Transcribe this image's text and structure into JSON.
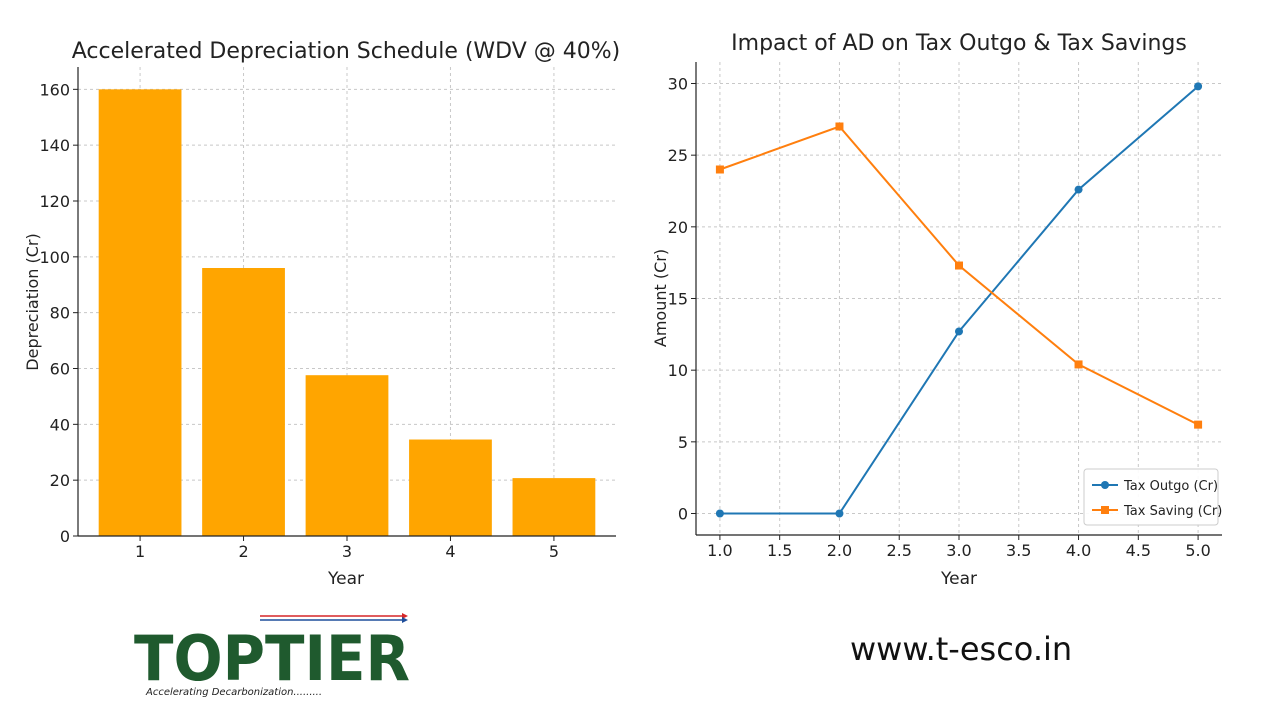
{
  "chart_data": [
    {
      "type": "bar",
      "title": "Accelerated Depreciation Schedule (WDV @ 40%)",
      "xlabel": "Year",
      "ylabel": "Depreciation (Cr)",
      "categories": [
        "1",
        "2",
        "3",
        "4",
        "5"
      ],
      "values": [
        160,
        96,
        57.6,
        34.56,
        20.74
      ],
      "ylim": [
        0,
        168
      ],
      "yticks": [
        0,
        20,
        40,
        60,
        80,
        100,
        120,
        140,
        160
      ],
      "color": "#ffa500",
      "grid": true
    },
    {
      "type": "line",
      "title": "Impact of AD on Tax Outgo & Tax Savings",
      "xlabel": "Year",
      "ylabel": "Amount (Cr)",
      "x": [
        1.0,
        2.0,
        3.0,
        4.0,
        5.0
      ],
      "xticks": [
        "1.0",
        "1.5",
        "2.0",
        "2.5",
        "3.0",
        "3.5",
        "4.0",
        "4.5",
        "5.0"
      ],
      "xlim": [
        0.8,
        5.2
      ],
      "yticks": [
        0,
        5,
        10,
        15,
        20,
        25,
        30
      ],
      "ylim": [
        -1.5,
        31.5
      ],
      "grid": true,
      "legend_position": "lower-right",
      "series": [
        {
          "name": "Tax Outgo (Cr)",
          "values": [
            0,
            0,
            12.7,
            22.6,
            29.8
          ],
          "color": "#1f77b4",
          "marker": "circle"
        },
        {
          "name": "Tax Saving (Cr)",
          "values": [
            24,
            27,
            17.3,
            10.4,
            6.2
          ],
          "color": "#ff7f0e",
          "marker": "square"
        }
      ]
    }
  ],
  "footer": {
    "logo_text": "TOPTIER",
    "tagline": "Accelerating Decarbonization.........",
    "website": "www.t-esco.in",
    "logo_color": "#1f5a2e",
    "arrow_red": "#d62728",
    "arrow_blue": "#1f4e9b"
  }
}
